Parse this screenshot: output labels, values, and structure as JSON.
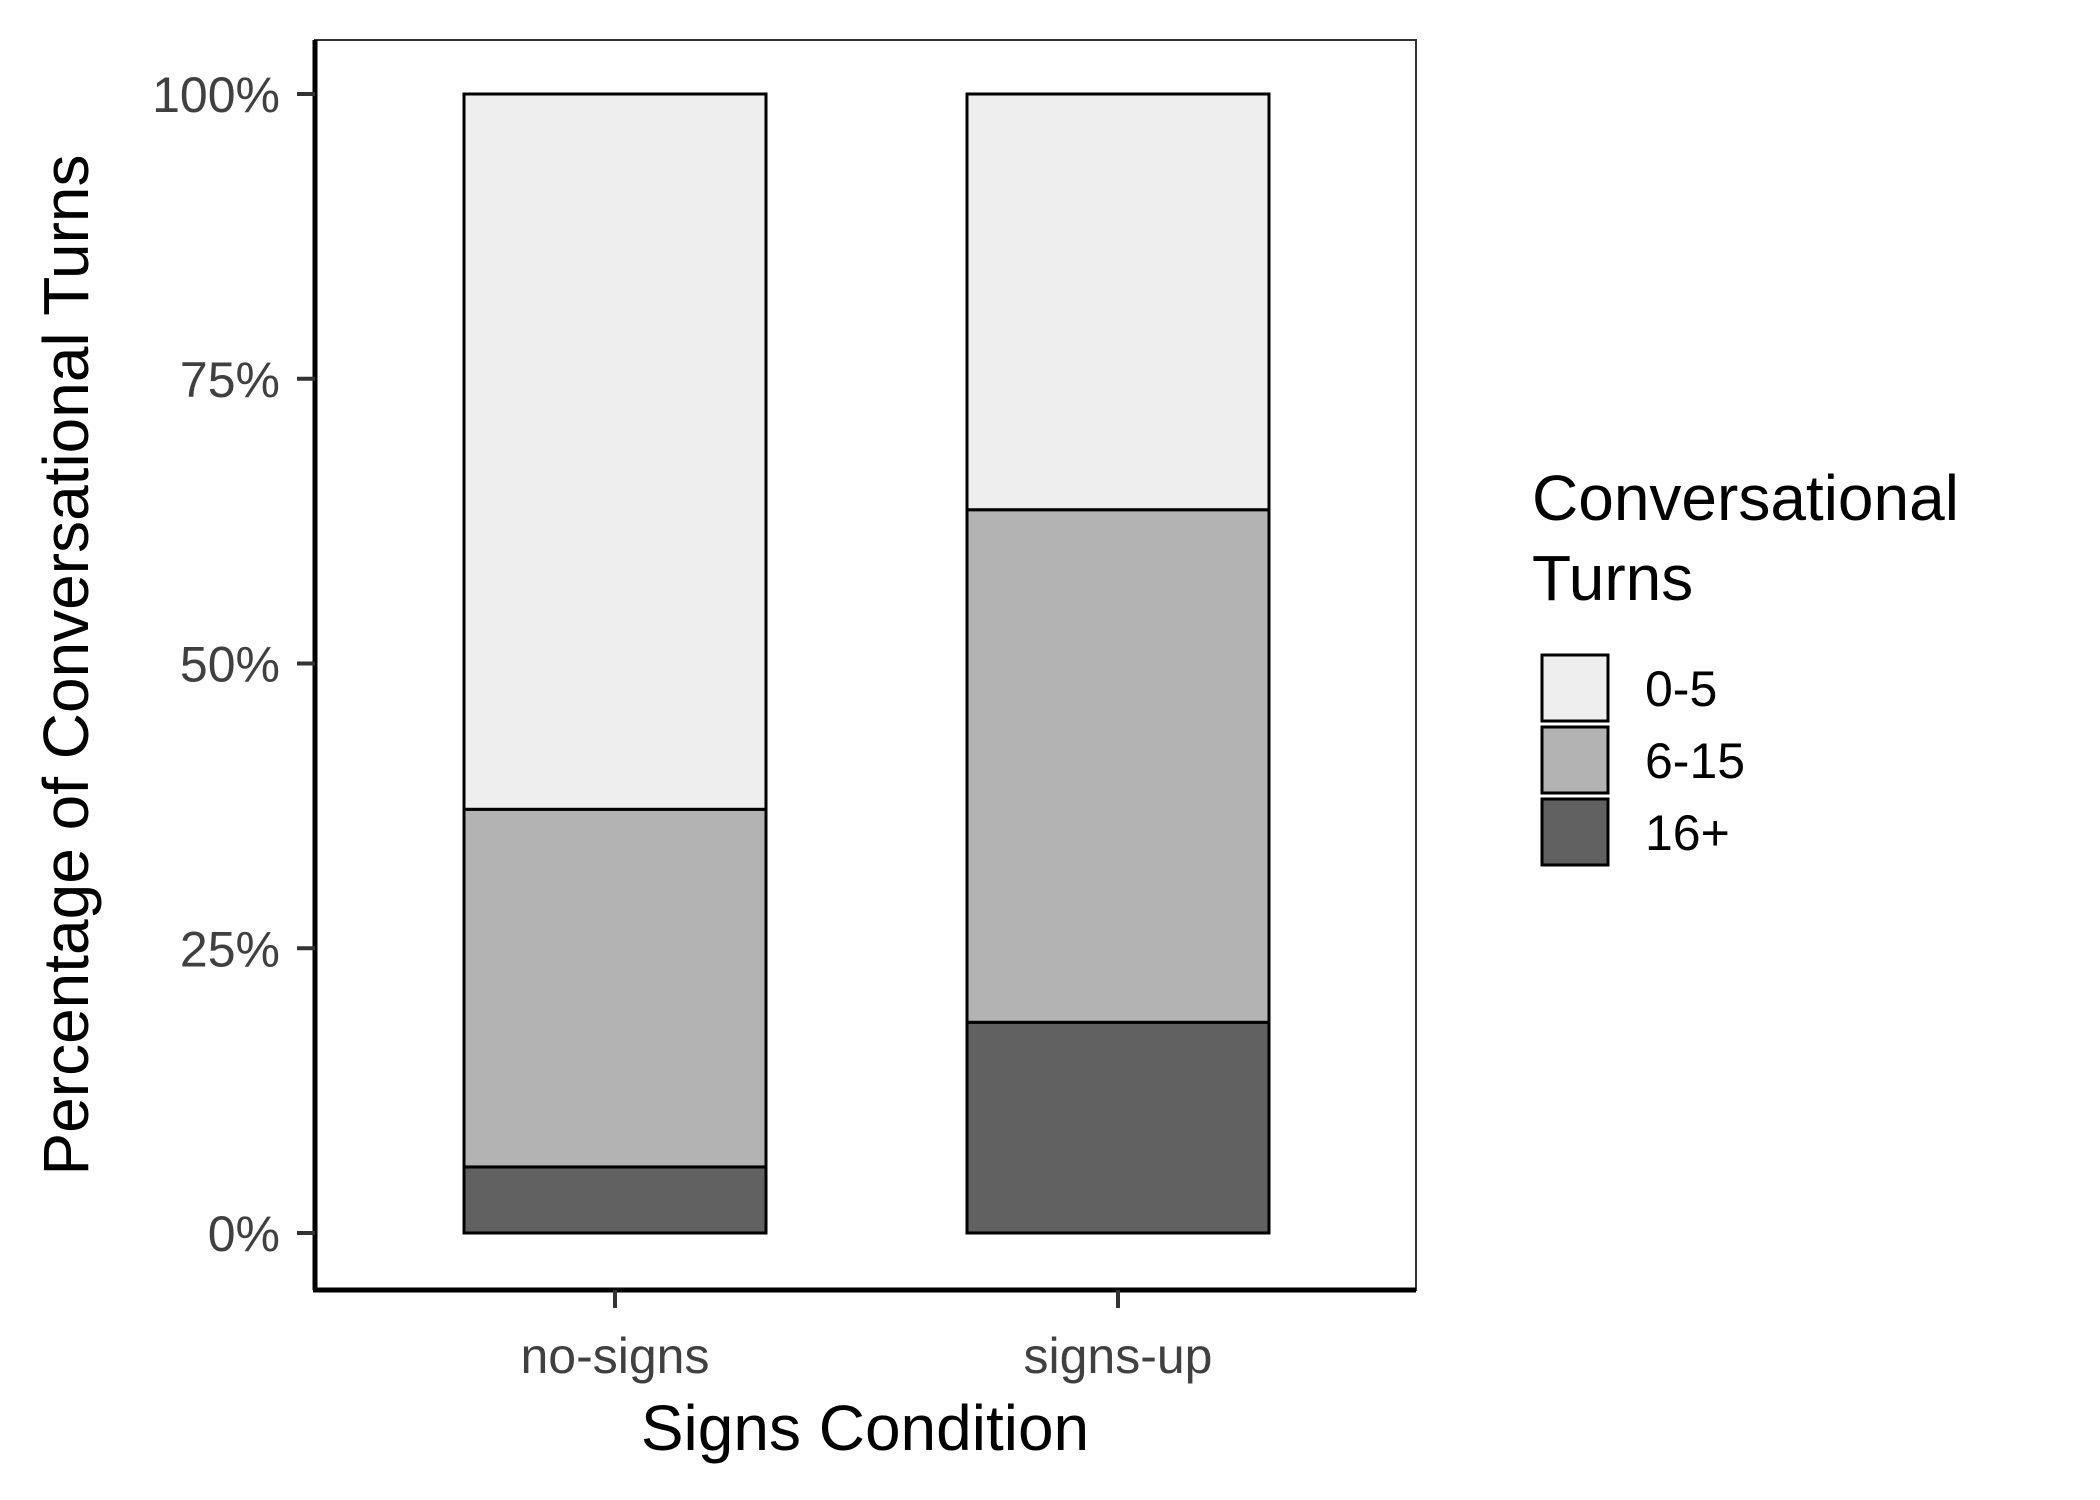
{
  "chart_data": {
    "type": "bar",
    "stacked": true,
    "normalized": true,
    "categories": [
      "no-signs",
      "signs-up"
    ],
    "series": [
      {
        "name": "16+",
        "values": [
          5.8,
          18.5
        ],
        "color": "#616161"
      },
      {
        "name": "6-15",
        "values": [
          31.4,
          45.0
        ],
        "color": "#b3b3b3"
      },
      {
        "name": "0-5",
        "values": [
          62.8,
          36.5
        ],
        "color": "#eeeeee"
      }
    ],
    "xlabel": "Signs Condition",
    "ylabel": "Percentage of Conversational Turns",
    "ylim": [
      0,
      100
    ],
    "yticks": [
      0,
      25,
      50,
      75,
      100
    ],
    "ytick_labels": [
      "0%",
      "25%",
      "50%",
      "75%",
      "100%"
    ],
    "legend": {
      "title_lines": [
        "Conversational",
        "Turns"
      ],
      "entries": [
        "0-5",
        "6-15",
        "16+"
      ],
      "placement": "right"
    },
    "grid": false
  }
}
